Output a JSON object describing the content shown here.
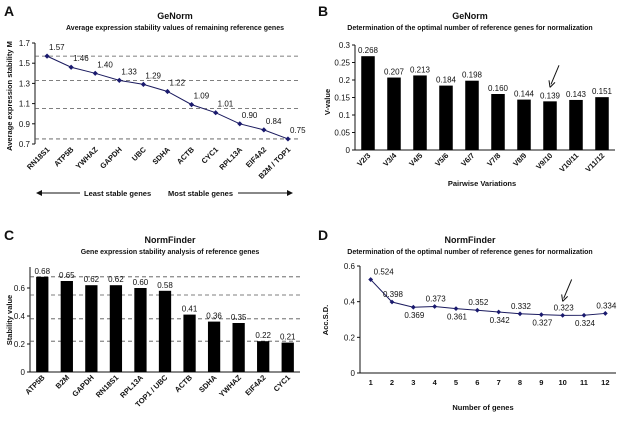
{
  "chart_data": [
    {
      "id": "A",
      "panel": "A",
      "type": "line",
      "title": "GeNorm",
      "subtitle": "Average expression stability values of remaining reference genes",
      "ylabel": "Average expression stability M",
      "xlabel": "",
      "categories": [
        "RN18S1",
        "ATP5B",
        "YWHAZ",
        "GAPDH",
        "UBC",
        "SDHA",
        "ACTB",
        "CYC1",
        "RPL13A",
        "EIF4A2",
        "B2M / TOP1"
      ],
      "values": [
        1.57,
        1.46,
        1.4,
        1.33,
        1.29,
        1.22,
        1.09,
        1.01,
        0.9,
        0.84,
        0.75
      ],
      "ylim": [
        0.7,
        1.7
      ],
      "yticks": [
        0.7,
        0.9,
        1.1,
        1.3,
        1.5,
        1.7
      ],
      "ref_lines": [
        1.57,
        1.33,
        1.05,
        0.75
      ],
      "note_left": "Least stable genes",
      "note_right": "Most stable genes"
    },
    {
      "id": "B",
      "panel": "B",
      "type": "bar",
      "title": "GeNorm",
      "subtitle": "Determination of the optimal number of reference genes for normalization",
      "ylabel": "V-value",
      "xlabel": "Pairwise Variations",
      "categories": [
        "V2/3",
        "V3/4",
        "V4/5",
        "V5/6",
        "V6/7",
        "V7/8",
        "V8/9",
        "V9/10",
        "V10/11",
        "V11/12"
      ],
      "values": [
        0.268,
        0.207,
        0.213,
        0.184,
        0.198,
        0.16,
        0.144,
        0.139,
        0.143,
        0.151
      ],
      "ylim": [
        0,
        0.3
      ],
      "yticks": [
        0,
        0.05,
        0.1,
        0.15,
        0.2,
        0.25,
        0.3
      ],
      "arrow_index": 7
    },
    {
      "id": "C",
      "panel": "C",
      "type": "bar",
      "title": "NormFinder",
      "subtitle": "Gene expression stability analysis of reference genes",
      "ylabel": "Stability value",
      "xlabel": "",
      "categories": [
        "ATP5B",
        "B2M",
        "GAPDH",
        "RN18S1",
        "RPL13A",
        "TOP1 / UBC",
        "ACTB",
        "SDHA",
        "YWHAZ",
        "EIF4A2",
        "CYC1"
      ],
      "values": [
        0.68,
        0.65,
        0.62,
        0.62,
        0.6,
        0.58,
        0.41,
        0.36,
        0.35,
        0.22,
        0.21
      ],
      "ylim": [
        0,
        0.75
      ],
      "yticks": [
        0,
        0.2,
        0.4,
        0.6
      ],
      "ref_lines": [
        0.68,
        0.55,
        0.38,
        0.22
      ]
    },
    {
      "id": "D",
      "panel": "D",
      "type": "line",
      "title": "NormFinder",
      "subtitle": "Determination of the optimal number of reference genes for normalization",
      "ylabel": "Acc.S.D.",
      "xlabel": "Number of genes",
      "x": [
        1,
        2,
        3,
        4,
        5,
        6,
        7,
        8,
        9,
        10,
        11,
        12
      ],
      "values": [
        0.524,
        0.398,
        0.369,
        0.373,
        0.361,
        0.352,
        0.342,
        0.332,
        0.327,
        0.323,
        0.324,
        0.334
      ],
      "label_pos": [
        "above",
        "above",
        "below",
        "above",
        "below",
        "above",
        "below",
        "above",
        "below",
        "above",
        "below",
        "above"
      ],
      "ylim": [
        0,
        0.6
      ],
      "yticks": [
        0,
        0.2,
        0.4,
        0.6
      ],
      "arrow_index": 9
    }
  ]
}
